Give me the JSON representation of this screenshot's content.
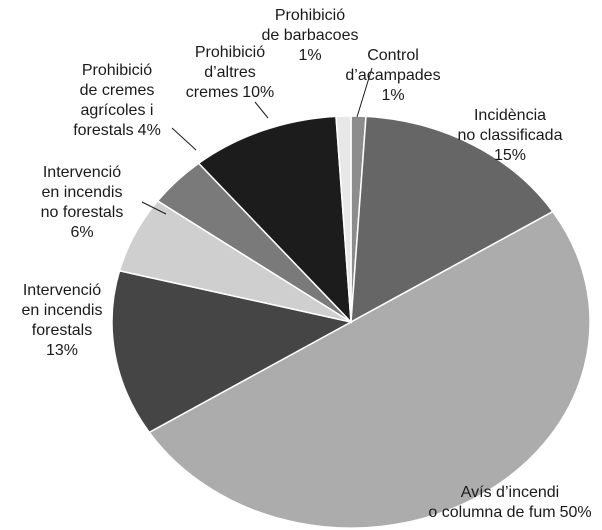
{
  "chart_data": {
    "type": "pie",
    "categories": [
      [
        "Control",
        "d’acampades"
      ],
      [
        "Incidència",
        "no classificada"
      ],
      [
        "Avís d’incendi",
        "o columna de fum"
      ],
      [
        "Intervenció",
        "en incendis",
        "forestals"
      ],
      [
        "Intervenció",
        "en incendis",
        "no forestals"
      ],
      [
        "Prohibició",
        "de cremes",
        "agrícoles i",
        "forestals"
      ],
      [
        "Prohibició",
        "d’altres",
        "cremes"
      ],
      [
        "Prohibició",
        "de barbacoes"
      ]
    ],
    "values": [
      1,
      15,
      50,
      13,
      6,
      4,
      10,
      1
    ],
    "value_labels": [
      "1%",
      "15%",
      "50%",
      "13%",
      "6%",
      "4%",
      "10%",
      "1%"
    ],
    "colors": [
      "#8c8c8c",
      "#666666",
      "#acacac",
      "#454545",
      "#cfcfcf",
      "#7a7a7a",
      "#1c1c1c",
      "#e8e8e8"
    ]
  }
}
